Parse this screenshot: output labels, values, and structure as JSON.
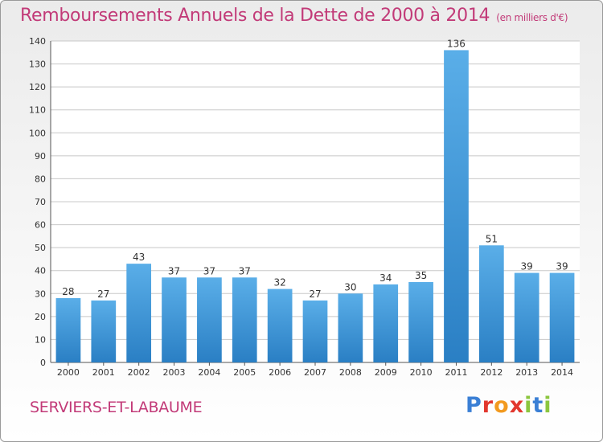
{
  "header": {
    "title": "Remboursements Annuels de la Dette de 2000 à 2014",
    "subtitle": "(en milliers d'€)"
  },
  "footer": {
    "commune": "SERVIERS-ET-LABAUME",
    "logo": "Proxiti"
  },
  "colors": {
    "title": "#c23a78",
    "bar_top": "#5aaee8",
    "bar_bottom": "#2a7fc4",
    "grid": "#c8c8c8",
    "logo_letters": [
      "#3a7fd5",
      "#e2372e",
      "#f29a1f",
      "#e2372e",
      "#8cc63f",
      "#3a7fd5",
      "#8cc63f"
    ]
  },
  "chart_data": {
    "type": "bar",
    "title": "Remboursements Annuels de la Dette de 2000 à 2014",
    "subtitle": "(en milliers d'€)",
    "categories": [
      "2000",
      "2001",
      "2002",
      "2003",
      "2004",
      "2005",
      "2006",
      "2007",
      "2008",
      "2009",
      "2010",
      "2011",
      "2012",
      "2013",
      "2014"
    ],
    "values": [
      28,
      27,
      43,
      37,
      37,
      37,
      32,
      27,
      30,
      34,
      35,
      136,
      51,
      39,
      39
    ],
    "data_labels": [
      "28",
      "27",
      "43",
      "37",
      "37",
      "37",
      "32",
      "27",
      "30",
      "34",
      "35",
      "136",
      "51",
      "39",
      "39"
    ],
    "yticks": [
      "0",
      "10",
      "20",
      "30",
      "40",
      "50",
      "60",
      "70",
      "80",
      "90",
      "100",
      "110",
      "120",
      "130",
      "140"
    ],
    "ylim": [
      0,
      140
    ],
    "grid": true
  }
}
